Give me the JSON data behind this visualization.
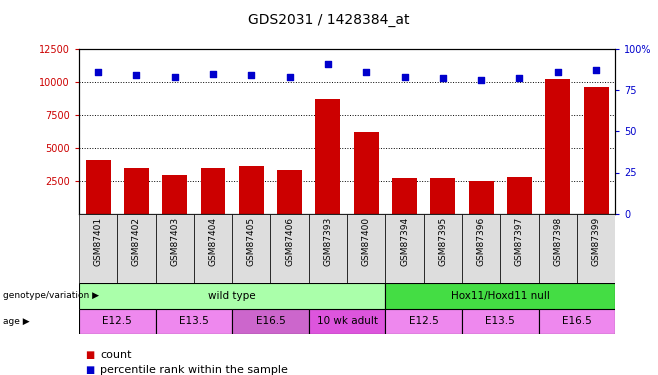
{
  "title": "GDS2031 / 1428384_at",
  "samples": [
    "GSM87401",
    "GSM87402",
    "GSM87403",
    "GSM87404",
    "GSM87405",
    "GSM87406",
    "GSM87393",
    "GSM87400",
    "GSM87394",
    "GSM87395",
    "GSM87396",
    "GSM87397",
    "GSM87398",
    "GSM87399"
  ],
  "counts": [
    4100,
    3500,
    2900,
    3500,
    3600,
    3300,
    8700,
    6200,
    2700,
    2700,
    2500,
    2800,
    10200,
    9600
  ],
  "percentiles": [
    86,
    84,
    83,
    85,
    84,
    83,
    91,
    86,
    83,
    82,
    81,
    82,
    86,
    87
  ],
  "ylim_left": [
    0,
    12500
  ],
  "ylim_right": [
    0,
    100
  ],
  "yticks_left": [
    2500,
    5000,
    7500,
    10000,
    12500
  ],
  "yticks_right": [
    0,
    25,
    50,
    75,
    100
  ],
  "bar_color": "#CC0000",
  "scatter_color": "#0000CC",
  "grid_color": "#000000",
  "genotype_groups": [
    {
      "label": "wild type",
      "start": 0,
      "end": 8,
      "color": "#AAFFAA"
    },
    {
      "label": "Hox11/Hoxd11 null",
      "start": 8,
      "end": 14,
      "color": "#44DD44"
    }
  ],
  "age_groups": [
    {
      "label": "E12.5",
      "start": 0,
      "end": 2,
      "color": "#EE88EE"
    },
    {
      "label": "E13.5",
      "start": 2,
      "end": 4,
      "color": "#EE88EE"
    },
    {
      "label": "E16.5",
      "start": 4,
      "end": 6,
      "color": "#CC66CC"
    },
    {
      "label": "10 wk adult",
      "start": 6,
      "end": 8,
      "color": "#DD55DD"
    },
    {
      "label": "E12.5",
      "start": 8,
      "end": 10,
      "color": "#EE88EE"
    },
    {
      "label": "E13.5",
      "start": 10,
      "end": 12,
      "color": "#EE88EE"
    },
    {
      "label": "E16.5",
      "start": 12,
      "end": 14,
      "color": "#EE88EE"
    }
  ],
  "bar_color_hex": "#CC0000",
  "scatter_color_hex": "#0000CC",
  "left_axis_color": "#CC0000",
  "right_axis_color": "#0000CC",
  "title_fontsize": 10,
  "tick_label_fontsize": 7,
  "sample_label_fontsize": 6.5,
  "annotation_fontsize": 7.5,
  "legend_fontsize": 8
}
